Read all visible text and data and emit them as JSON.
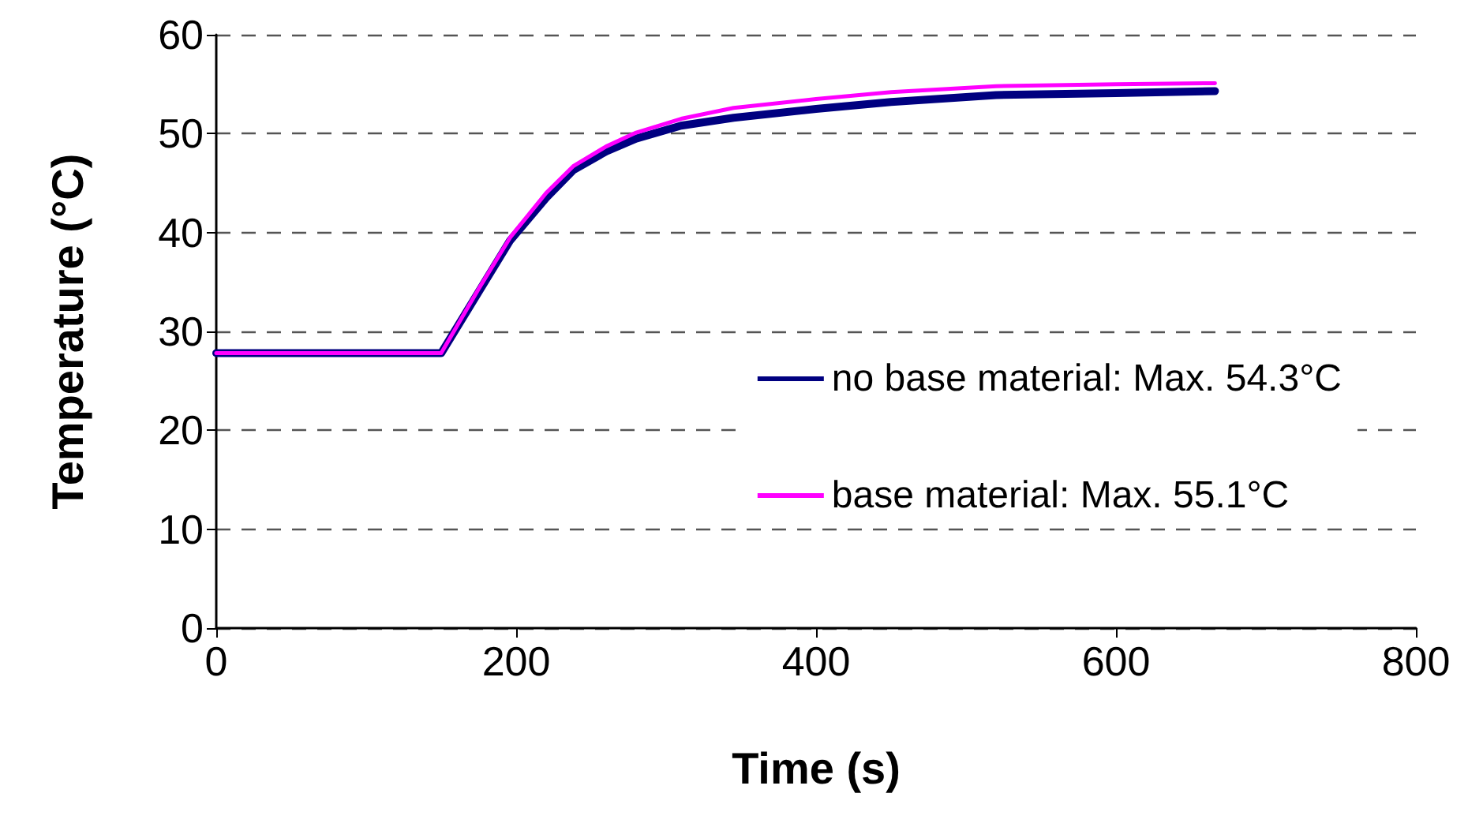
{
  "chart_data": {
    "type": "line",
    "xlabel": "Time (s)",
    "ylabel": "Temperature (°C)",
    "x": [
      0,
      150,
      175,
      196,
      220,
      238,
      260,
      280,
      310,
      345,
      400,
      450,
      520,
      600,
      666
    ],
    "series": [
      {
        "name": "no base material: Max. 54.3°C",
        "color": "#000080",
        "values": [
          27.8,
          27.8,
          34,
          39.2,
          43.5,
          46.3,
          48.2,
          49.5,
          50.8,
          51.6,
          52.5,
          53.2,
          53.9,
          54.1,
          54.3
        ]
      },
      {
        "name": "base material: Max. 55.1°C",
        "color": "#ff00ff",
        "values": [
          27.8,
          27.8,
          34.3,
          39.5,
          44,
          46.7,
          48.7,
          50.1,
          51.5,
          52.6,
          53.5,
          54.2,
          54.8,
          55,
          55.1
        ]
      }
    ],
    "xlim": [
      0,
      800
    ],
    "xticks": [
      0,
      200,
      400,
      600,
      800
    ],
    "ylim": [
      0,
      60
    ],
    "yticks": [
      0,
      10,
      20,
      30,
      40,
      50,
      60
    ],
    "grid": "y",
    "legend": "right",
    "marker": "none",
    "line_style": "solid"
  }
}
